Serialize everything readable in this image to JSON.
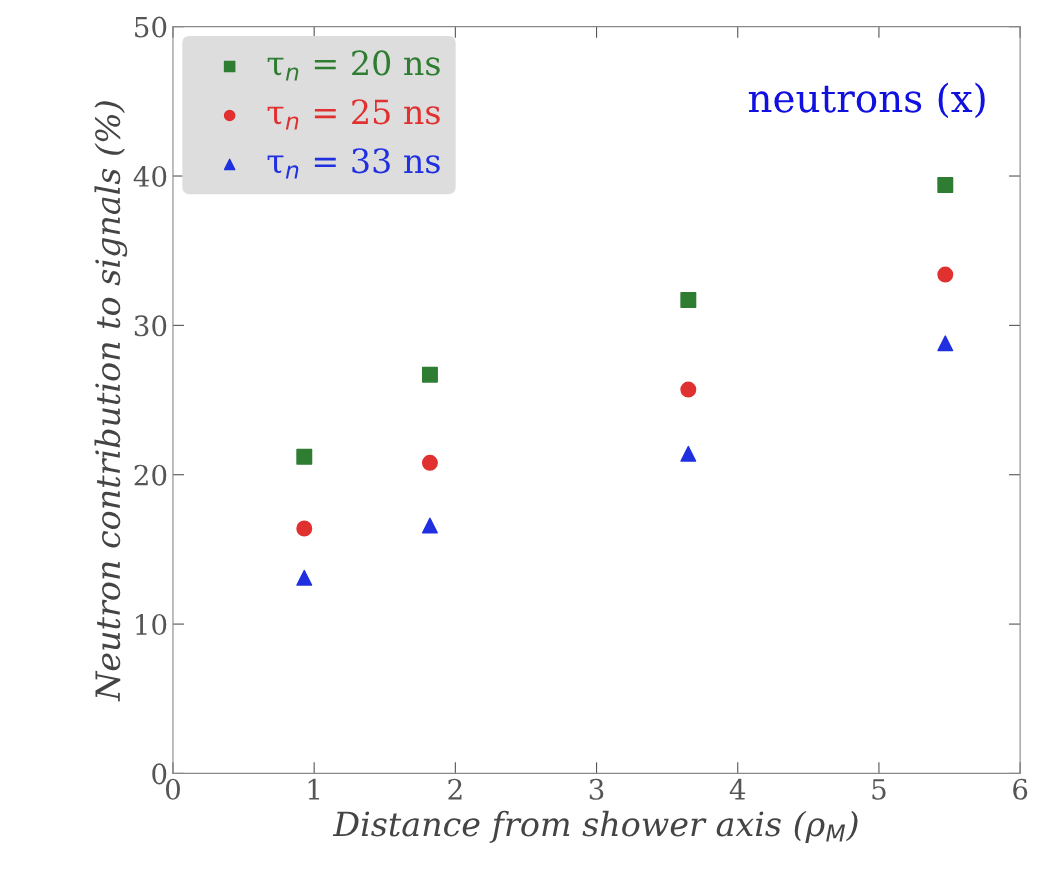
{
  "chart_data": {
    "type": "scatter",
    "xlabel": "Distance from shower axis (ρ$_{M}$)",
    "ylabel": "Neutron contribution to signals (%)",
    "annotations": [
      "neutrons (x)"
    ],
    "x": [
      0.93,
      1.82,
      3.65,
      5.47
    ],
    "series": [
      {
        "name": "τ$_{n}$ = 20 ns",
        "color": "#2e7d32",
        "marker": "square",
        "values": [
          21.2,
          26.7,
          31.7,
          39.4
        ]
      },
      {
        "name": "τ$_{n}$ = 25 ns",
        "color": "#e03030",
        "marker": "circle",
        "values": [
          16.4,
          20.8,
          25.7,
          33.4
        ]
      },
      {
        "name": "τ$_{n}$ = 33 ns",
        "color": "#2030e0",
        "marker": "triangle",
        "values": [
          13.1,
          16.6,
          21.4,
          28.8
        ]
      }
    ],
    "xlim": [
      0,
      6
    ],
    "ylim": [
      0,
      50
    ],
    "xticks": [
      0,
      1,
      2,
      3,
      4,
      5,
      6
    ],
    "yticks": [
      0,
      10,
      20,
      30,
      40,
      50
    ],
    "grid": false,
    "legend": "top left"
  }
}
